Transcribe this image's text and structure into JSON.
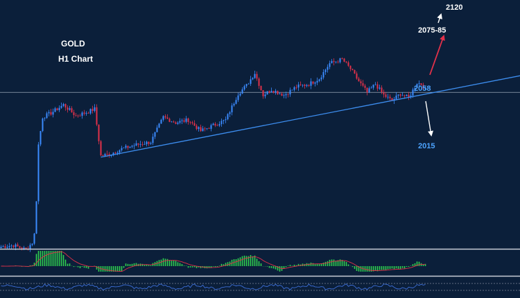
{
  "chart_data": {
    "type": "candlestick",
    "title": "GOLD",
    "subtitle": "H1 Chart",
    "xlabel": "",
    "ylabel": "",
    "grid": false,
    "ylim": [
      1945,
      2125
    ],
    "levels": {
      "horizontal": 2058
    },
    "trendline": {
      "from_bar": 48,
      "from_value": 2011,
      "to_bar": 205,
      "to_value": 2057
    },
    "annotations": [
      {
        "text": "2120",
        "value": 2120,
        "color": "#ffffff",
        "arrow": "up"
      },
      {
        "text": "2075-85",
        "value": 2080,
        "color": "#ffffff",
        "arrow": "up-red"
      },
      {
        "text": "2058",
        "value": 2058,
        "color": "#4da3ff",
        "arrow": "none"
      },
      {
        "text": "2015",
        "value": 2015,
        "color": "#4da3ff",
        "arrow": "down"
      }
    ],
    "bars": 205,
    "series": [
      {
        "name": "",
        "type": "candlestick"
      },
      {
        "name": "",
        "type": "histogram-oscillator"
      },
      {
        "name": "",
        "type": "oscillator-line"
      }
    ],
    "colors": {
      "background": "#0b1f3a",
      "bull": "#3b8bff",
      "bear": "#e2314a",
      "trendline": "#3d8ef0",
      "level": "#9aa7b8",
      "histogram": "#2fcf4f",
      "signal": "#e2314a",
      "osc_line": "#3d6fd8"
    }
  }
}
